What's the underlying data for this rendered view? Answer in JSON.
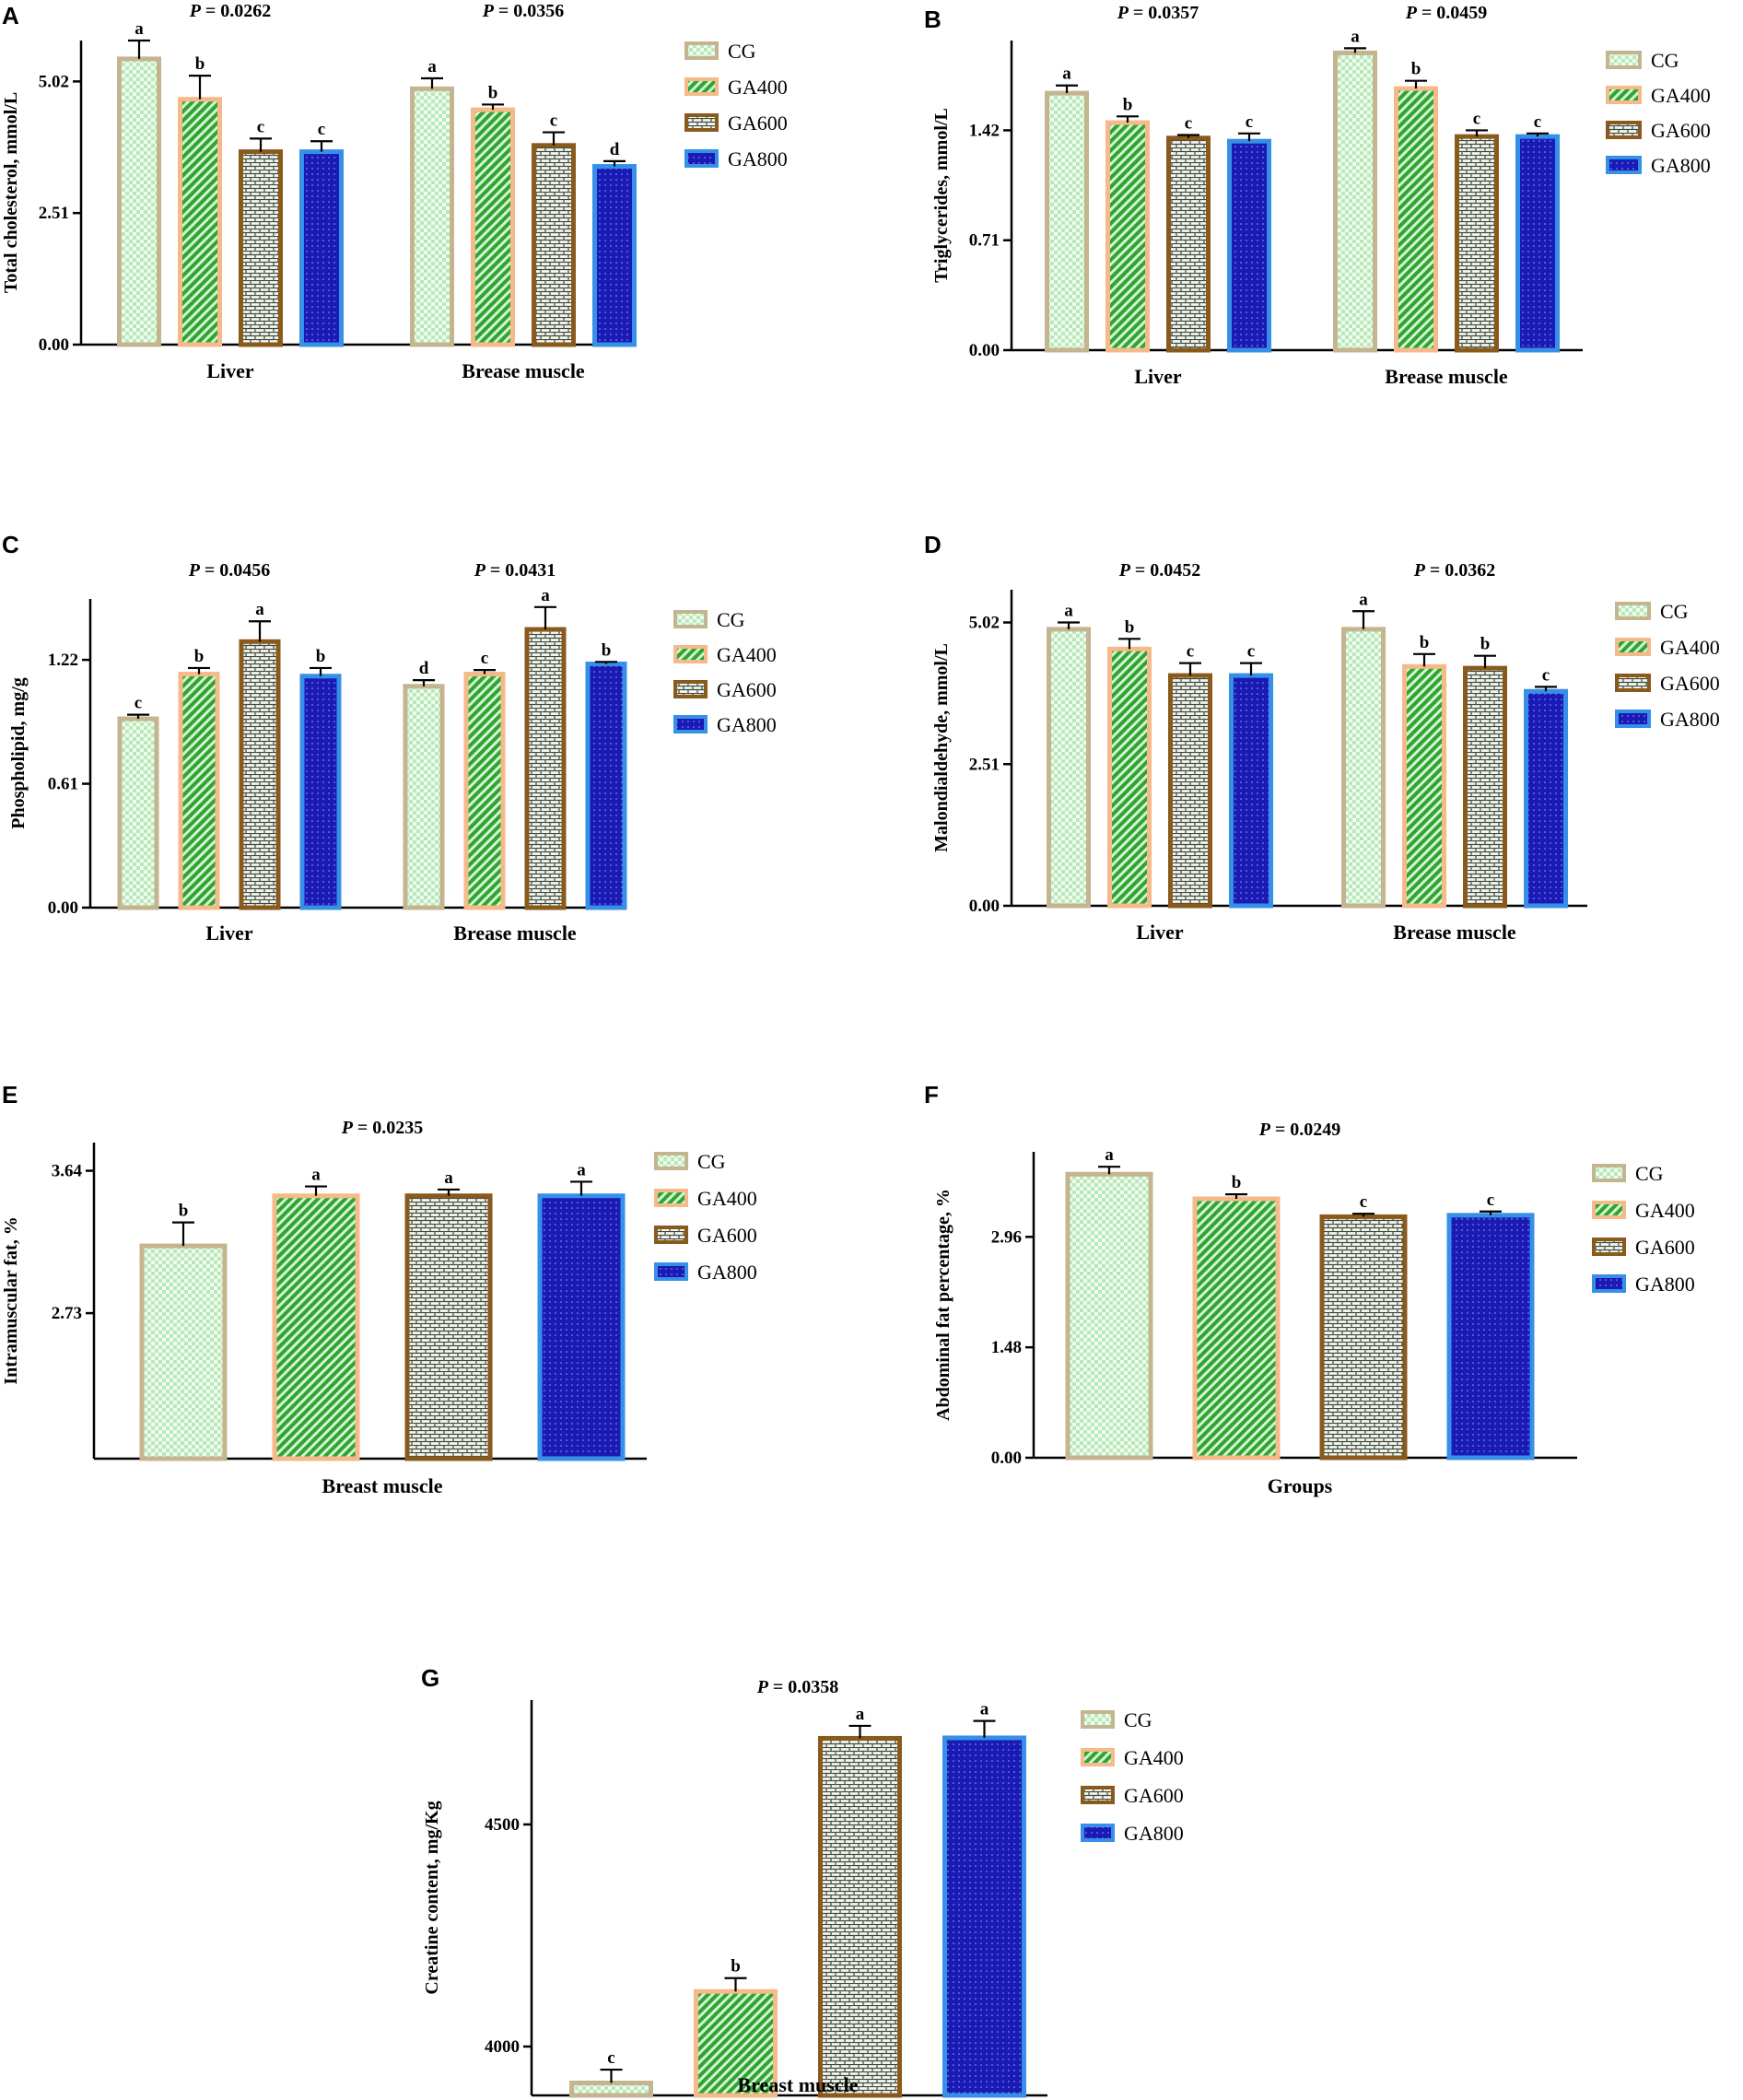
{
  "legend": [
    "CG",
    "GA400",
    "GA600",
    "GA800"
  ],
  "series_colors": {
    "CG": {
      "border": "#c4b48f",
      "fill": "#b8eab8",
      "bg": "#f2fbf2"
    },
    "GA400": {
      "border": "#f5b98a",
      "fill": "#2ea52e",
      "bg": "#d2f2d2"
    },
    "GA600": {
      "border": "#8a5a1c",
      "fill": "#ffffff",
      "bg": "#3b4a3b"
    },
    "GA800": {
      "border": "#3690e8",
      "fill": "#1a1ab4",
      "bg": "#1a1ab4"
    }
  },
  "chart_data": [
    {
      "panel": "A",
      "type": "bar",
      "categories": [
        "Liver",
        "Brease muscle"
      ],
      "ylabel": "Total cholesterol, mmol/L",
      "yticks": [
        "0.00",
        "2.51",
        "5.02"
      ],
      "ytick_values": [
        0,
        2.51,
        5.02
      ],
      "ylim": [
        0,
        5.8
      ],
      "p_values": [
        "P = 0.0262",
        "P = 0.0356"
      ],
      "series": [
        {
          "name": "CG",
          "values": [
            5.45,
            4.88
          ],
          "errors": [
            0.35,
            0.2
          ],
          "letters": [
            "a",
            "a"
          ]
        },
        {
          "name": "GA400",
          "values": [
            4.68,
            4.48
          ],
          "errors": [
            0.45,
            0.1
          ],
          "letters": [
            "b",
            "b"
          ]
        },
        {
          "name": "GA600",
          "values": [
            3.68,
            3.8
          ],
          "errors": [
            0.25,
            0.25
          ],
          "letters": [
            "c",
            "c"
          ]
        },
        {
          "name": "GA800",
          "values": [
            3.68,
            3.4
          ],
          "errors": [
            0.2,
            0.1
          ],
          "letters": [
            "c",
            "d"
          ]
        }
      ]
    },
    {
      "panel": "B",
      "type": "bar",
      "categories": [
        "Liver",
        "Brease muscle"
      ],
      "ylabel": "Triglycerides, mmol/L",
      "yticks": [
        "0.00",
        "0.71",
        "1.42"
      ],
      "ytick_values": [
        0,
        0.71,
        1.42
      ],
      "ylim": [
        0,
        2.0
      ],
      "p_values": [
        "P = 0.0357",
        "P = 0.0459"
      ],
      "series": [
        {
          "name": "CG",
          "values": [
            1.66,
            1.92
          ],
          "errors": [
            0.05,
            0.03
          ],
          "letters": [
            "a",
            "a"
          ]
        },
        {
          "name": "GA400",
          "values": [
            1.47,
            1.69
          ],
          "errors": [
            0.04,
            0.05
          ],
          "letters": [
            "b",
            "b"
          ]
        },
        {
          "name": "GA600",
          "values": [
            1.37,
            1.38
          ],
          "errors": [
            0.02,
            0.04
          ],
          "letters": [
            "c",
            "c"
          ]
        },
        {
          "name": "GA800",
          "values": [
            1.35,
            1.38
          ],
          "errors": [
            0.05,
            0.02
          ],
          "letters": [
            "c",
            "c"
          ]
        }
      ]
    },
    {
      "panel": "C",
      "type": "bar",
      "categories": [
        "Liver",
        "Brease muscle"
      ],
      "ylabel": "Phospholipid, mg/g",
      "yticks": [
        "0.00",
        "0.61",
        "1.22"
      ],
      "ytick_values": [
        0,
        0.61,
        1.22
      ],
      "ylim": [
        0,
        1.52
      ],
      "p_values": [
        "P = 0.0456",
        "P = 0.0431"
      ],
      "series": [
        {
          "name": "CG",
          "values": [
            0.93,
            1.09
          ],
          "errors": [
            0.02,
            0.03
          ],
          "letters": [
            "c",
            "d"
          ]
        },
        {
          "name": "GA400",
          "values": [
            1.15,
            1.15
          ],
          "errors": [
            0.03,
            0.02
          ],
          "letters": [
            "b",
            "c"
          ]
        },
        {
          "name": "GA600",
          "values": [
            1.31,
            1.37
          ],
          "errors": [
            0.1,
            0.11
          ],
          "letters": [
            "a",
            "a"
          ]
        },
        {
          "name": "GA800",
          "values": [
            1.14,
            1.2
          ],
          "errors": [
            0.04,
            0.01
          ],
          "letters": [
            "b",
            "b"
          ]
        }
      ]
    },
    {
      "panel": "D",
      "type": "bar",
      "categories": [
        "Liver",
        "Brease muscle"
      ],
      "ylabel": "Malondialdehyde, mmol/L",
      "yticks": [
        "0.00",
        "2.51",
        "5.02"
      ],
      "ytick_values": [
        0,
        2.51,
        5.02
      ],
      "ylim": [
        0,
        5.6
      ],
      "p_values": [
        "P = 0.0452",
        "P = 0.0362"
      ],
      "series": [
        {
          "name": "CG",
          "values": [
            4.9,
            4.9
          ],
          "errors": [
            0.12,
            0.32
          ],
          "letters": [
            "a",
            "a"
          ]
        },
        {
          "name": "GA400",
          "values": [
            4.55,
            4.24
          ],
          "errors": [
            0.18,
            0.22
          ],
          "letters": [
            "b",
            "b"
          ]
        },
        {
          "name": "GA600",
          "values": [
            4.08,
            4.21
          ],
          "errors": [
            0.22,
            0.22
          ],
          "letters": [
            "c",
            "b"
          ]
        },
        {
          "name": "GA800",
          "values": [
            4.08,
            3.8
          ],
          "errors": [
            0.22,
            0.08
          ],
          "letters": [
            "c",
            "c"
          ]
        }
      ]
    },
    {
      "panel": "E",
      "type": "bar",
      "categories": [
        "Breast muscle"
      ],
      "ylabel": "Intramuscular fat, %",
      "yticks": [
        "2.73",
        "3.64"
      ],
      "ytick_values": [
        2.73,
        3.64
      ],
      "ylim": [
        1.8,
        3.82
      ],
      "p_values": [
        "P = 0.0235"
      ],
      "series": [
        {
          "name": "CG",
          "values": [
            3.16
          ],
          "errors": [
            0.15
          ],
          "letters": [
            "b"
          ]
        },
        {
          "name": "GA400",
          "values": [
            3.48
          ],
          "errors": [
            0.06
          ],
          "letters": [
            "a"
          ]
        },
        {
          "name": "GA600",
          "values": [
            3.48
          ],
          "errors": [
            0.04
          ],
          "letters": [
            "a"
          ]
        },
        {
          "name": "GA800",
          "values": [
            3.48
          ],
          "errors": [
            0.09
          ],
          "letters": [
            "a"
          ]
        }
      ]
    },
    {
      "panel": "F",
      "type": "bar",
      "categories": [
        "Groups"
      ],
      "ylabel": "Abdominal fat percentage, %",
      "yticks": [
        "0.00",
        "1.48",
        "2.96"
      ],
      "ytick_values": [
        0,
        1.48,
        2.96
      ],
      "ylim": [
        0,
        4.1
      ],
      "p_values": [
        "P = 0.0249"
      ],
      "series": [
        {
          "name": "CG",
          "values": [
            3.8
          ],
          "errors": [
            0.1
          ],
          "letters": [
            "a"
          ]
        },
        {
          "name": "GA400",
          "values": [
            3.47
          ],
          "errors": [
            0.06
          ],
          "letters": [
            "b"
          ]
        },
        {
          "name": "GA600",
          "values": [
            3.23
          ],
          "errors": [
            0.04
          ],
          "letters": [
            "c"
          ]
        },
        {
          "name": "GA800",
          "values": [
            3.25
          ],
          "errors": [
            0.05
          ],
          "letters": [
            "c"
          ]
        }
      ]
    },
    {
      "panel": "G",
      "type": "bar",
      "categories": [
        "Breast muscle"
      ],
      "ylabel": "Creatine content, mg/Kg",
      "yticks": [
        "4000",
        "4500"
      ],
      "ytick_values": [
        4000,
        4500
      ],
      "ylim": [
        3890,
        4780
      ],
      "p_values": [
        "P = 0.0358"
      ],
      "series": [
        {
          "name": "CG",
          "values": [
            3918
          ],
          "errors": [
            30
          ],
          "letters": [
            "c"
          ]
        },
        {
          "name": "GA400",
          "values": [
            4124
          ],
          "errors": [
            30
          ],
          "letters": [
            "b"
          ]
        },
        {
          "name": "GA600",
          "values": [
            4694
          ],
          "errors": [
            28
          ],
          "letters": [
            "a"
          ]
        },
        {
          "name": "GA800",
          "values": [
            4695
          ],
          "errors": [
            38
          ],
          "letters": [
            "a"
          ]
        }
      ]
    }
  ]
}
